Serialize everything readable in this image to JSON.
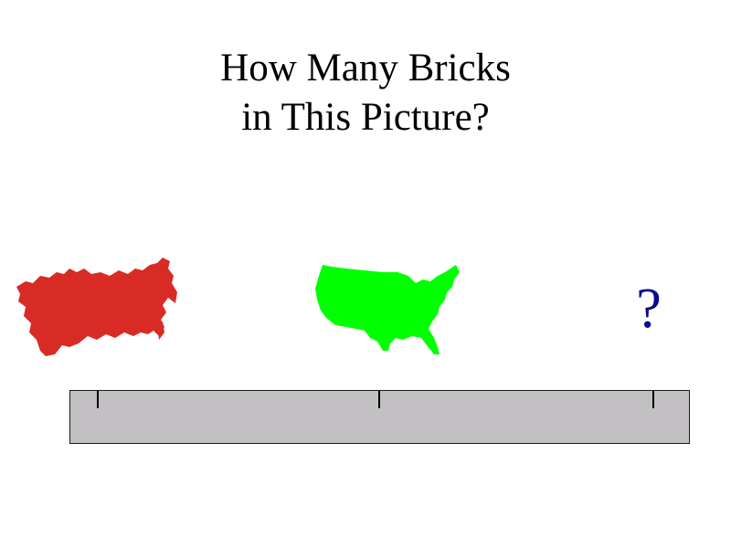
{
  "slide": {
    "title_line1": "How Many Bricks",
    "title_line2": "in This Picture?",
    "question_mark": "?"
  },
  "items": [
    {
      "name": "ussr-map",
      "color": "#d92b26"
    },
    {
      "name": "usa-map",
      "color": "#00ff00"
    },
    {
      "name": "unknown",
      "color": "#0a0a8c"
    }
  ],
  "scale_bar": {
    "fill": "#c2c0c2",
    "tick_count": 3
  }
}
